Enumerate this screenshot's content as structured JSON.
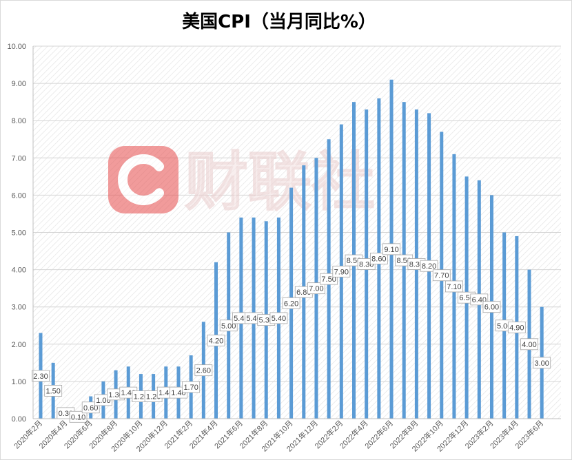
{
  "chart_data": {
    "type": "bar",
    "title": "美国CPI（当月同比%）",
    "xlabel": "",
    "ylabel": "",
    "ylim": [
      0,
      10
    ],
    "yticks": [
      "0.00",
      "1.00",
      "2.00",
      "3.00",
      "4.00",
      "5.00",
      "6.00",
      "7.00",
      "8.00",
      "9.00",
      "10.00"
    ],
    "grid": true,
    "legend": "none",
    "bar_color": "#5b9bd5",
    "categories": [
      "2020年2月",
      "",
      "2020年4月",
      "",
      "2020年6月",
      "",
      "2020年8月",
      "",
      "2020年10月",
      "",
      "2020年12月",
      "",
      "2021年2月",
      "",
      "2021年4月",
      "",
      "2021年6月",
      "",
      "2021年8月",
      "",
      "2021年10月",
      "",
      "2021年12月",
      "",
      "2022年2月",
      "",
      "2022年4月",
      "",
      "2022年6月",
      "",
      "2022年8月",
      "",
      "2022年10月",
      "",
      "2022年12月",
      "",
      "2023年2月",
      "",
      "2023年4月",
      "",
      "2023年6月"
    ],
    "values": [
      2.3,
      1.5,
      0.3,
      0.1,
      0.6,
      1.0,
      1.3,
      1.4,
      1.2,
      1.2,
      1.4,
      1.4,
      1.7,
      2.6,
      4.2,
      5.0,
      5.4,
      5.4,
      5.3,
      5.4,
      6.2,
      6.8,
      7.0,
      7.5,
      7.9,
      8.5,
      8.3,
      8.6,
      9.1,
      8.5,
      8.3,
      8.2,
      7.7,
      7.1,
      6.5,
      6.4,
      6.0,
      5.0,
      4.9,
      4.0,
      3.0
    ],
    "value_labels": [
      "2.30",
      "1.50",
      "0.30",
      "0.10",
      "0.60",
      "1.00",
      "1.30",
      "1.40",
      "1.20",
      "1.20",
      "1.40",
      "1.40",
      "1.70",
      "2.60",
      "4.20",
      "5.00",
      "5.40",
      "5.40",
      "5.30",
      "5.40",
      "6.20",
      "6.80",
      "7.00",
      "7.50",
      "7.90",
      "8.50",
      "8.30",
      "8.60",
      "9.10",
      "8.50",
      "8.30",
      "8.20",
      "7.70",
      "7.10",
      "6.50",
      "6.40",
      "6.00",
      "5.00",
      "4.90",
      "4.00",
      "3.00"
    ]
  },
  "watermark": {
    "text": "财联社",
    "logo_color": "#e85a5a"
  }
}
